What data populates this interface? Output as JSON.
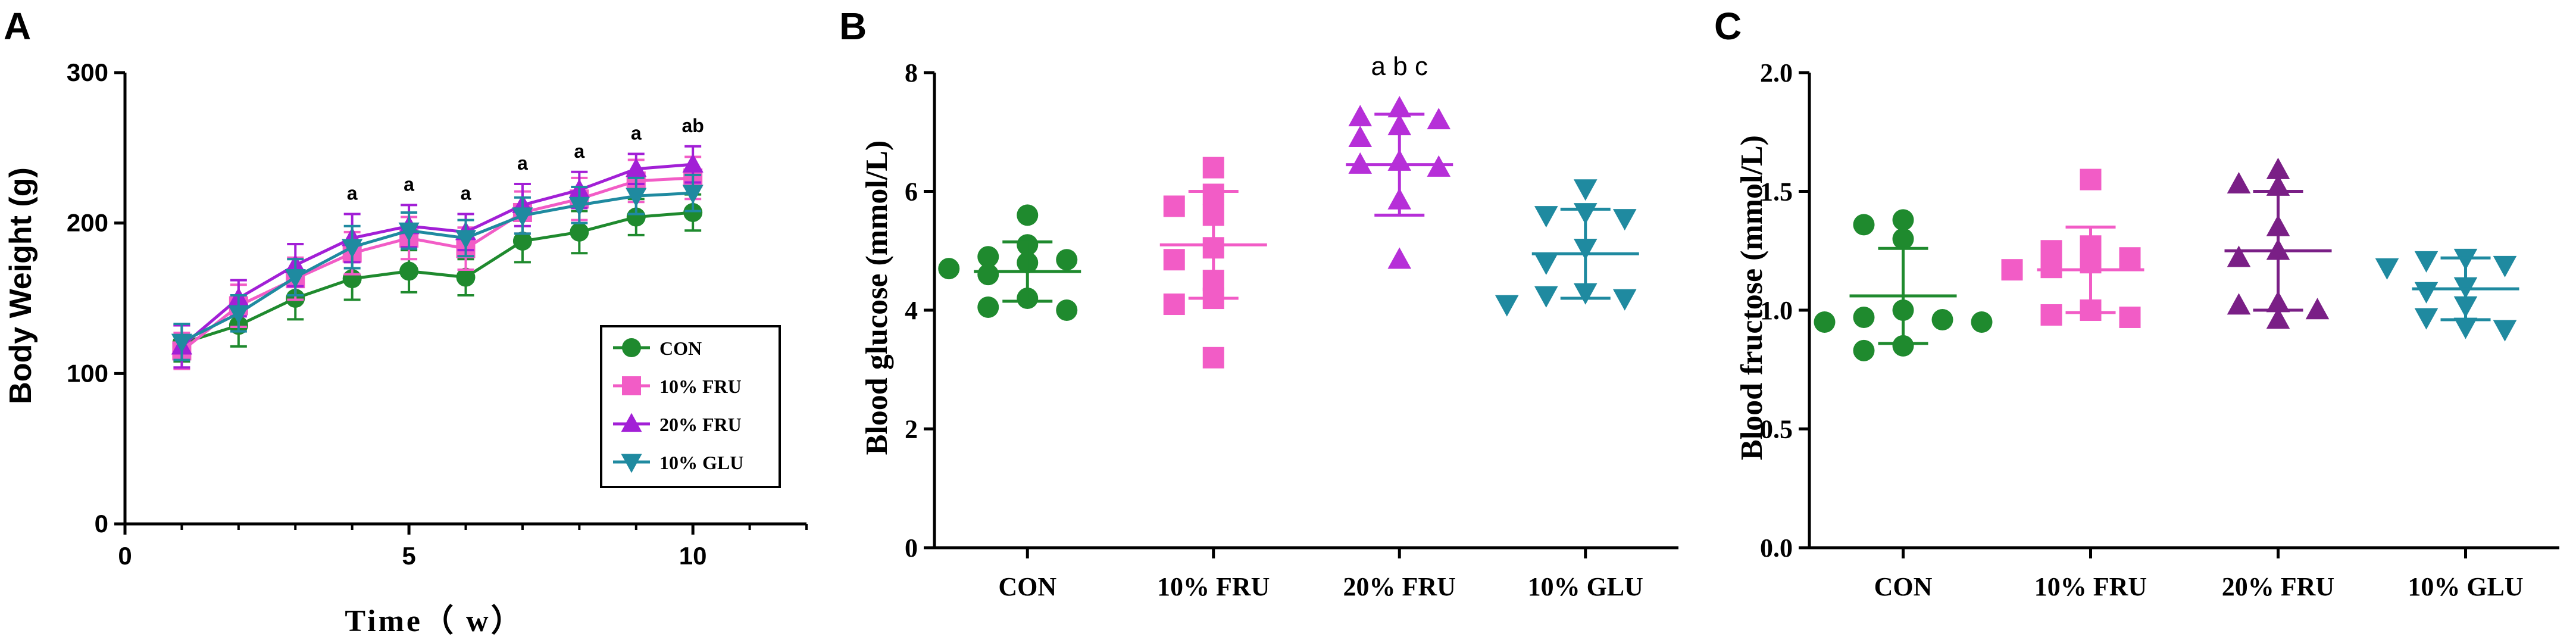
{
  "colors": {
    "CON": "#1f8a2e",
    "10% FRU": "#f25cc6",
    "20% FRU": "#a21fd6",
    "10% GLU": "#1f8aa0",
    "20% FRU B": "#b62fd8",
    "20% FRU C": "#7a1f86"
  },
  "chart_data": [
    {
      "panel": "A",
      "type": "line",
      "xlabel": "Time（ w）",
      "ylabel": "Body Weight (g)",
      "xlim": [
        0,
        12
      ],
      "ylim": [
        0,
        300
      ],
      "x_ticks": [
        "0",
        "5",
        "10"
      ],
      "y_ticks": [
        "0",
        "100",
        "200",
        "300"
      ],
      "x": [
        1,
        2,
        3,
        4,
        5,
        6,
        7,
        8,
        9,
        10
      ],
      "series": [
        {
          "name": "CON",
          "marker": "circle",
          "values": [
            120,
            132,
            150,
            163,
            168,
            164,
            188,
            194,
            204,
            207
          ],
          "errors": [
            12,
            14,
            14,
            14,
            14,
            12,
            14,
            14,
            12,
            12
          ]
        },
        {
          "name": "10% FRU",
          "marker": "square",
          "values": [
            115,
            145,
            163,
            180,
            190,
            183,
            207,
            216,
            228,
            230
          ],
          "errors": [
            12,
            14,
            14,
            14,
            14,
            14,
            14,
            14,
            14,
            14
          ]
        },
        {
          "name": "20% FRU",
          "marker": "triangle-up",
          "values": [
            118,
            150,
            172,
            190,
            198,
            194,
            212,
            222,
            236,
            239
          ],
          "errors": [
            14,
            12,
            14,
            16,
            14,
            12,
            14,
            12,
            10,
            12
          ]
        },
        {
          "name": "10% GLU",
          "marker": "triangle-down",
          "values": [
            121,
            140,
            164,
            184,
            195,
            190,
            205,
            212,
            218,
            220
          ],
          "errors": [
            12,
            12,
            12,
            14,
            12,
            12,
            12,
            12,
            12,
            12
          ]
        }
      ],
      "annotations": [
        {
          "x": 4,
          "text": "a"
        },
        {
          "x": 5,
          "text": "a"
        },
        {
          "x": 6,
          "text": "a"
        },
        {
          "x": 7,
          "text": "a"
        },
        {
          "x": 8,
          "text": "a"
        },
        {
          "x": 9,
          "text": "a"
        },
        {
          "x": 10,
          "text": "ab"
        }
      ],
      "legend": "bottom-right"
    },
    {
      "panel": "B",
      "type": "scatter",
      "ylabel": "Blood glucose (mmol/L)",
      "ylim": [
        0,
        8
      ],
      "y_ticks": [
        "0",
        "2",
        "4",
        "6",
        "8"
      ],
      "categories": [
        "CON",
        "10% FRU",
        "20% FRU",
        "10% GLU"
      ],
      "groups": [
        {
          "name": "CON",
          "marker": "circle",
          "mean": 4.65,
          "sd": 0.5,
          "points": [
            5.6,
            5.1,
            4.9,
            4.85,
            4.8,
            4.7,
            4.6,
            4.2,
            4.05,
            4.0
          ]
        },
        {
          "name": "10% FRU",
          "marker": "square",
          "mean": 5.1,
          "sd": 0.9,
          "points": [
            6.4,
            5.95,
            5.75,
            5.6,
            5.05,
            4.85,
            4.5,
            4.2,
            4.1,
            3.2
          ]
        },
        {
          "name": "20% FRU",
          "marker": "triangle-up",
          "mean": 6.45,
          "sd": 0.85,
          "points": [
            7.4,
            7.25,
            7.2,
            7.1,
            6.9,
            6.5,
            6.45,
            6.4,
            5.85,
            4.85
          ]
        },
        {
          "name": "10% GLU",
          "marker": "triangle-down",
          "mean": 4.95,
          "sd": 0.75,
          "points": [
            6.05,
            5.65,
            5.55,
            5.6,
            5.05,
            4.8,
            4.3,
            4.25,
            4.2,
            4.1
          ]
        }
      ],
      "annotations": [
        {
          "category": "20% FRU",
          "text": "a b c"
        }
      ]
    },
    {
      "panel": "C",
      "type": "scatter",
      "ylabel": "Blood fructose (mmol/L)",
      "ylim": [
        0.0,
        2.0
      ],
      "y_ticks": [
        "0.0",
        "0.5",
        "1.0",
        "1.5",
        "2.0"
      ],
      "categories": [
        "CON",
        "10% FRU",
        "20% FRU",
        "10% GLU"
      ],
      "groups": [
        {
          "name": "CON",
          "marker": "circle",
          "mean": 1.06,
          "sd": 0.2,
          "points": [
            1.38,
            1.36,
            1.3,
            1.0,
            0.97,
            0.96,
            0.95,
            0.95,
            0.85,
            0.83
          ]
        },
        {
          "name": "10% FRU",
          "marker": "square",
          "mean": 1.17,
          "sd": 0.18,
          "points": [
            1.55,
            1.27,
            1.25,
            1.22,
            1.2,
            1.18,
            1.17,
            1.0,
            0.98,
            0.97
          ]
        },
        {
          "name": "20% FRU",
          "marker": "triangle-up",
          "mean": 1.25,
          "sd": 0.25,
          "points": [
            1.59,
            1.53,
            1.52,
            1.35,
            1.25,
            1.22,
            1.03,
            1.02,
            1.0,
            0.96
          ]
        },
        {
          "name": "10% GLU",
          "marker": "triangle-down",
          "mean": 1.09,
          "sd": 0.13,
          "points": [
            1.22,
            1.21,
            1.19,
            1.18,
            1.1,
            1.08,
            1.02,
            0.97,
            0.93,
            0.92
          ]
        }
      ]
    }
  ]
}
